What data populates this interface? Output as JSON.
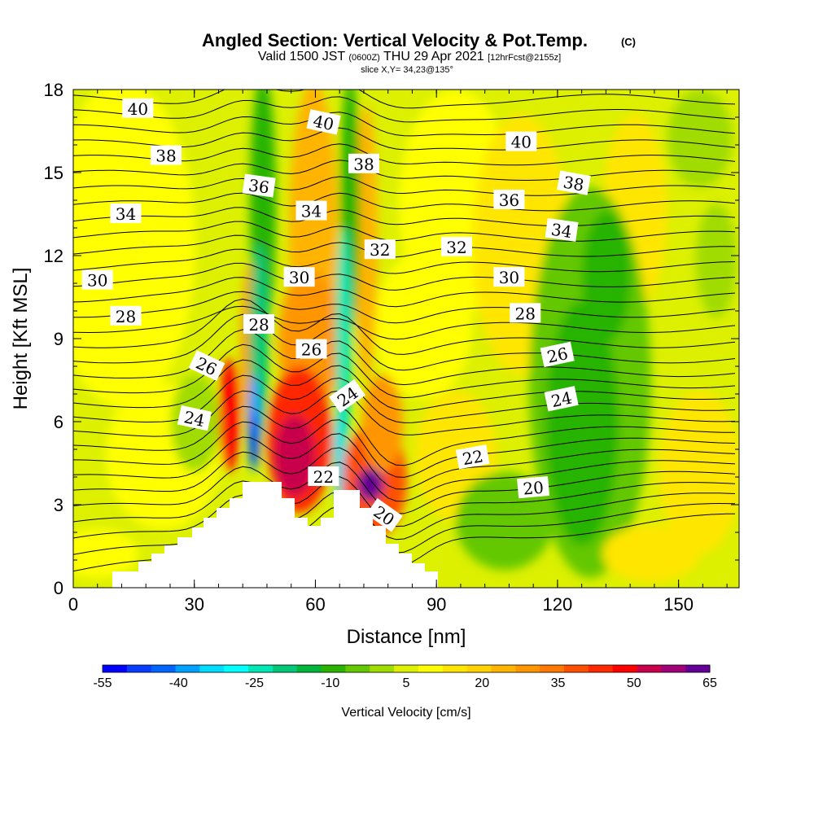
{
  "chart_data": {
    "type": "heatmap",
    "title": "Angled Section: Vertical Velocity & Pot.Temp.",
    "title_mark": "(C)",
    "subtitle_main": "Valid 1500 JST",
    "subtitle_z": "(0600Z)",
    "subtitle_date": "THU 29 Apr 2021",
    "subtitle_fcst": "[12hrFcst@2155z]",
    "slice_text": "slice X,Y= 34,23@135°",
    "xlabel": "Distance [nm]",
    "ylabel": "Height [Kft MSL]",
    "xlim": [
      0,
      165
    ],
    "ylim": [
      0,
      18
    ],
    "x_ticks": [
      "0",
      "30",
      "60",
      "90",
      "120",
      "150"
    ],
    "x_tick_values": [
      0,
      30,
      60,
      90,
      120,
      150
    ],
    "y_ticks": [
      "0",
      "3",
      "6",
      "9",
      "12",
      "15",
      "18"
    ],
    "y_tick_values": [
      0,
      3,
      6,
      9,
      12,
      15,
      18
    ],
    "colorbar": {
      "label": "Vertical Velocity [cm/s]",
      "tick_labels": [
        "-55",
        "-40",
        "-25",
        "-10",
        "5",
        "20",
        "35",
        "50",
        "65"
      ],
      "tick_values": [
        -55,
        -40,
        -25,
        -10,
        5,
        20,
        35,
        50,
        65
      ],
      "levels": [
        -55,
        -50,
        -45,
        -40,
        -35,
        -30,
        -25,
        -20,
        -15,
        -10,
        -5,
        0,
        5,
        10,
        15,
        20,
        25,
        30,
        35,
        40,
        45,
        50,
        55,
        60,
        65
      ],
      "colors": [
        "#0000ff",
        "#0a3cff",
        "#0064ff",
        "#00a0ff",
        "#00dcff",
        "#00ffff",
        "#00e6b4",
        "#00c878",
        "#00b43c",
        "#28b400",
        "#64c800",
        "#a0dc00",
        "#dcf000",
        "#ffff00",
        "#ffe600",
        "#ffd200",
        "#ffb400",
        "#ff9600",
        "#ff7800",
        "#ff5000",
        "#ff2800",
        "#ff0000",
        "#c8004b",
        "#a00078",
        "#640096"
      ]
    },
    "theta_labels": [
      {
        "text": "40",
        "x": 16,
        "y": 17.3,
        "angle": 0
      },
      {
        "text": "40",
        "x": 62,
        "y": 16.8,
        "angle": 12
      },
      {
        "text": "40",
        "x": 111,
        "y": 16.1,
        "angle": 0
      },
      {
        "text": "38",
        "x": 23,
        "y": 15.6,
        "angle": 0
      },
      {
        "text": "38",
        "x": 72,
        "y": 15.3,
        "angle": 0
      },
      {
        "text": "38",
        "x": 124,
        "y": 14.6,
        "angle": 10
      },
      {
        "text": "36",
        "x": 46,
        "y": 14.5,
        "angle": 8
      },
      {
        "text": "36",
        "x": 108,
        "y": 14.0,
        "angle": 0
      },
      {
        "text": "34",
        "x": 13,
        "y": 13.5,
        "angle": 0
      },
      {
        "text": "34",
        "x": 59,
        "y": 13.6,
        "angle": 0
      },
      {
        "text": "34",
        "x": 121,
        "y": 12.9,
        "angle": 8
      },
      {
        "text": "32",
        "x": 76,
        "y": 12.2,
        "angle": 0
      },
      {
        "text": "32",
        "x": 95,
        "y": 12.3,
        "angle": 0
      },
      {
        "text": "30",
        "x": 6,
        "y": 11.1,
        "angle": 0
      },
      {
        "text": "30",
        "x": 56,
        "y": 11.2,
        "angle": 0
      },
      {
        "text": "30",
        "x": 108,
        "y": 11.2,
        "angle": 0
      },
      {
        "text": "28",
        "x": 13,
        "y": 9.8,
        "angle": 0
      },
      {
        "text": "28",
        "x": 46,
        "y": 9.5,
        "angle": 0
      },
      {
        "text": "28",
        "x": 112,
        "y": 9.9,
        "angle": 0
      },
      {
        "text": "26",
        "x": 33,
        "y": 8.0,
        "angle": 25
      },
      {
        "text": "26",
        "x": 59,
        "y": 8.6,
        "angle": 0
      },
      {
        "text": "26",
        "x": 120,
        "y": 8.4,
        "angle": -12
      },
      {
        "text": "24",
        "x": 30,
        "y": 6.1,
        "angle": 12
      },
      {
        "text": "24",
        "x": 68,
        "y": 6.9,
        "angle": -35
      },
      {
        "text": "24",
        "x": 121,
        "y": 6.8,
        "angle": -12
      },
      {
        "text": "22",
        "x": 62,
        "y": 4.0,
        "angle": 0
      },
      {
        "text": "22",
        "x": 99,
        "y": 4.7,
        "angle": -10
      },
      {
        "text": "20",
        "x": 77,
        "y": 2.6,
        "angle": 35
      },
      {
        "text": "20",
        "x": 114,
        "y": 3.6,
        "angle": -5
      }
    ]
  }
}
